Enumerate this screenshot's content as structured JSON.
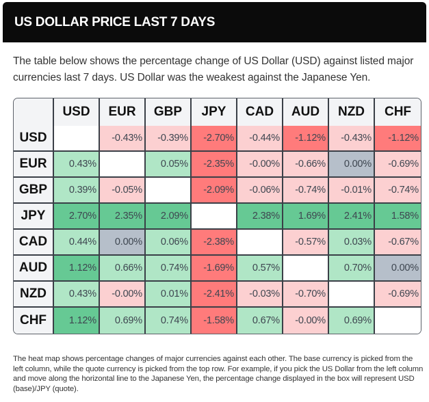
{
  "header": {
    "title": "US DOLLAR PRICE LAST 7 DAYS"
  },
  "intro": {
    "text": "The table below shows the percentage change of US Dollar (USD) against listed major currencies last 7 days. US Dollar was the weakest against the Japanese Yen."
  },
  "colors": {
    "strong_negative": "#ff7b7b",
    "weak_negative": "#fcd0d1",
    "neutral": "#b6bfca",
    "weak_positive": "#b0e6c6",
    "strong_positive": "#66c994",
    "diagonal": "#ffffff",
    "header_bg": "#f3f4f6",
    "title_bar": "#0b0b0b"
  },
  "heatmap": {
    "columns": [
      "USD",
      "EUR",
      "GBP",
      "JPY",
      "CAD",
      "AUD",
      "NZD",
      "CHF"
    ],
    "rows": [
      {
        "base": "USD",
        "values": [
          "",
          "-0.43%",
          "-0.39%",
          "-2.70%",
          "-0.44%",
          "-1.12%",
          "-0.43%",
          "-1.12%"
        ],
        "levels": [
          "diag",
          "weak_negative",
          "weak_negative",
          "strong_negative",
          "weak_negative",
          "strong_negative",
          "weak_negative",
          "strong_negative"
        ]
      },
      {
        "base": "EUR",
        "values": [
          "0.43%",
          "",
          "0.05%",
          "-2.35%",
          "-0.00%",
          "-0.66%",
          "0.00%",
          "-0.69%"
        ],
        "levels": [
          "weak_positive",
          "diag",
          "weak_positive",
          "strong_negative",
          "weak_negative",
          "weak_negative",
          "neutral",
          "weak_negative"
        ]
      },
      {
        "base": "GBP",
        "values": [
          "0.39%",
          "-0.05%",
          "",
          "-2.09%",
          "-0.06%",
          "-0.74%",
          "-0.01%",
          "-0.74%"
        ],
        "levels": [
          "weak_positive",
          "weak_negative",
          "diag",
          "strong_negative",
          "weak_negative",
          "weak_negative",
          "weak_negative",
          "weak_negative"
        ]
      },
      {
        "base": "JPY",
        "values": [
          "2.70%",
          "2.35%",
          "2.09%",
          "",
          "2.38%",
          "1.69%",
          "2.41%",
          "1.58%"
        ],
        "levels": [
          "strong_positive",
          "strong_positive",
          "strong_positive",
          "diag",
          "strong_positive",
          "strong_positive",
          "strong_positive",
          "strong_positive"
        ]
      },
      {
        "base": "CAD",
        "values": [
          "0.44%",
          "0.00%",
          "0.06%",
          "-2.38%",
          "",
          "-0.57%",
          "0.03%",
          "-0.67%"
        ],
        "levels": [
          "weak_positive",
          "neutral",
          "weak_positive",
          "strong_negative",
          "diag",
          "weak_negative",
          "weak_positive",
          "weak_negative"
        ]
      },
      {
        "base": "AUD",
        "values": [
          "1.12%",
          "0.66%",
          "0.74%",
          "-1.69%",
          "0.57%",
          "",
          "0.70%",
          "0.00%"
        ],
        "levels": [
          "strong_positive",
          "weak_positive",
          "weak_positive",
          "strong_negative",
          "weak_positive",
          "diag",
          "weak_positive",
          "neutral"
        ]
      },
      {
        "base": "NZD",
        "values": [
          "0.43%",
          "-0.00%",
          "0.01%",
          "-2.41%",
          "-0.03%",
          "-0.70%",
          "",
          "-0.69%"
        ],
        "levels": [
          "weak_positive",
          "weak_negative",
          "weak_positive",
          "strong_negative",
          "weak_negative",
          "weak_negative",
          "diag",
          "weak_negative"
        ]
      },
      {
        "base": "CHF",
        "values": [
          "1.12%",
          "0.69%",
          "0.74%",
          "-1.58%",
          "0.67%",
          "-0.00%",
          "0.69%",
          ""
        ],
        "levels": [
          "strong_positive",
          "weak_positive",
          "weak_positive",
          "strong_negative",
          "weak_positive",
          "weak_negative",
          "weak_positive",
          "diag"
        ]
      }
    ]
  },
  "footnote": {
    "text": "The heat map shows percentage changes of major currencies against each other. The base currency is picked from the left column, while the quote currency is picked from the top row. For example, if you pick the US Dollar from the left column and move along the horizontal line to the Japanese Yen, the percentage change displayed in the box will represent USD (base)/JPY (quote)."
  }
}
